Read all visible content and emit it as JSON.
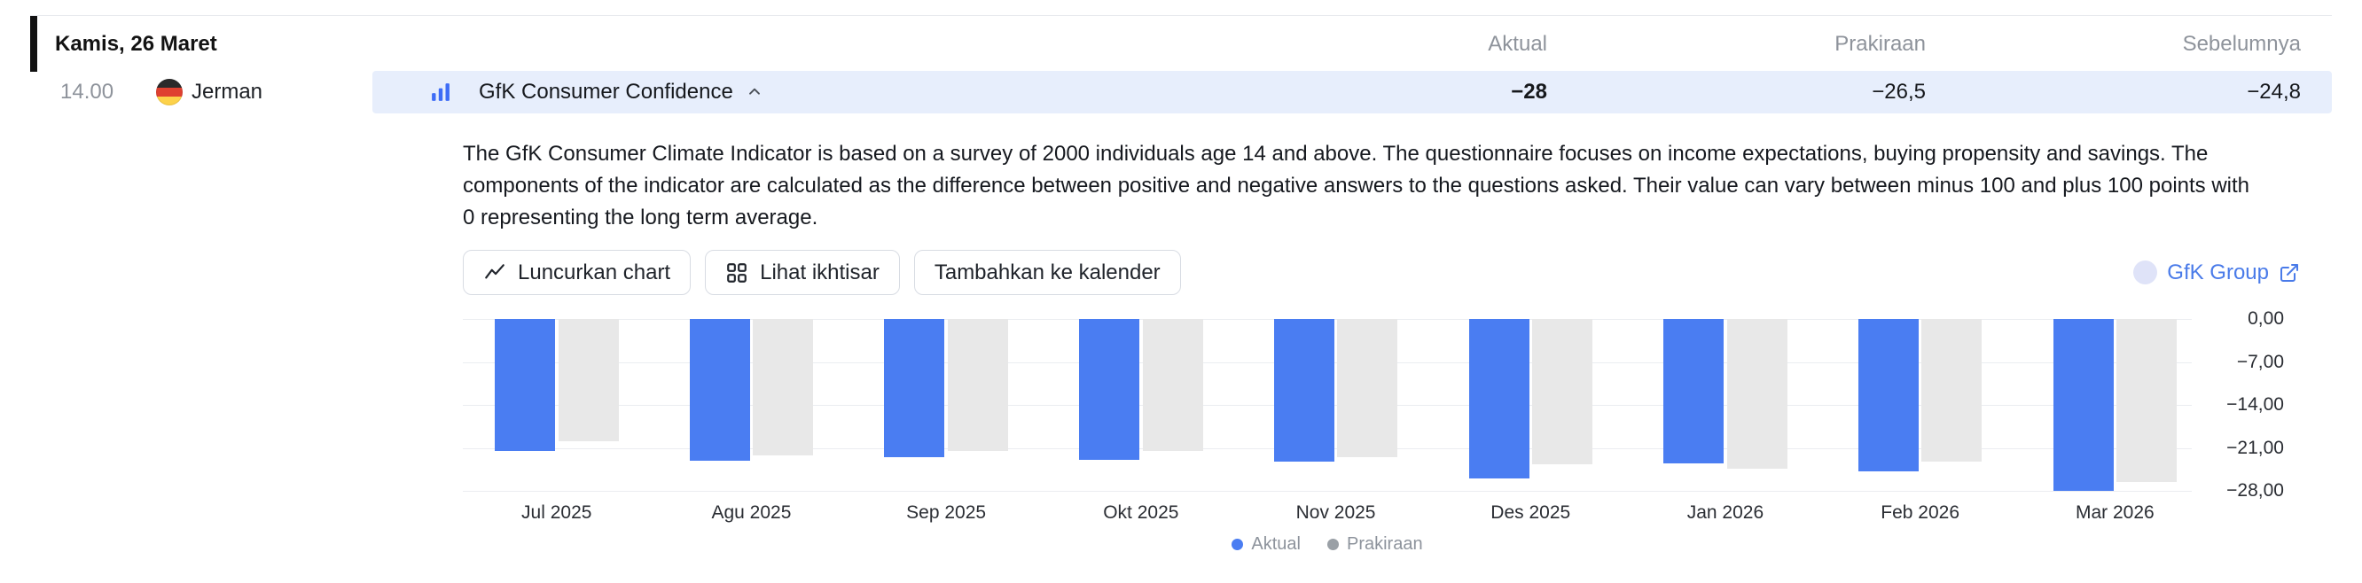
{
  "header": {
    "date": "Kamis, 26 Maret",
    "columns": [
      {
        "key": "actual",
        "label": "Aktual"
      },
      {
        "key": "forecast",
        "label": "Prakiraan"
      },
      {
        "key": "previous",
        "label": "Sebelumnya"
      }
    ]
  },
  "event": {
    "time": "14.00",
    "country": "Jerman",
    "flag_icon": "germany-flag",
    "indicator_icon": "bar-chart-icon",
    "title": "GfK Consumer Confidence",
    "actual": "−28",
    "forecast": "−26,5",
    "previous": "−24,8"
  },
  "details": {
    "description": "The GfK Consumer Climate Indicator is based on a survey of 2000 individuals age 14 and above. The questionnaire focuses on income expectations, buying propensity and savings. The components of the indicator are calculated as the difference between positive and negative answers to the questions asked. Their value can vary between minus 100 and plus 100 points with 0 representing the long term average.",
    "buttons": {
      "launch_chart": "Luncurkan chart",
      "view_overview": "Lihat ikhtisar",
      "add_to_calendar": "Tambahkan ke kalender"
    },
    "source_link": "GfK Group"
  },
  "chart_data": {
    "type": "bar",
    "categories": [
      "Jul 2025",
      "Agu 2025",
      "Sep 2025",
      "Okt 2025",
      "Nov 2025",
      "Des 2025",
      "Jan 2026",
      "Feb 2026",
      "Mar 2026"
    ],
    "series": [
      {
        "name": "Aktual",
        "color": "#4a7df2",
        "values": [
          -21.5,
          -23.1,
          -22.5,
          -23.0,
          -23.2,
          -26.0,
          -23.5,
          -24.8,
          -28.0
        ]
      },
      {
        "name": "Prakiraan",
        "color": "#e8e8e8",
        "values": [
          -19.9,
          -22.2,
          -21.5,
          -21.5,
          -22.5,
          -23.7,
          -24.4,
          -23.3,
          -26.5
        ]
      }
    ],
    "ylim": [
      -28,
      0
    ],
    "yticks": [
      {
        "label": "0,00",
        "value": 0
      },
      {
        "label": "−7,00",
        "value": -7
      },
      {
        "label": "−14,00",
        "value": -14
      },
      {
        "label": "−21,00",
        "value": -21
      },
      {
        "label": "−28,00",
        "value": -28
      }
    ],
    "grid": true,
    "legend_position": "bottom",
    "legend": [
      {
        "label": "Aktual",
        "color": "#4a7df2"
      },
      {
        "label": "Prakiraan",
        "color": "#9aa0a6"
      }
    ]
  },
  "colors": {
    "accent_blue": "#4a7df2",
    "row_highlight": "#e7eefc",
    "muted_text": "#8e939b",
    "grid_line": "#ebedf1",
    "bar_gray": "#e8e8e8",
    "link_blue": "#4a7be9"
  }
}
